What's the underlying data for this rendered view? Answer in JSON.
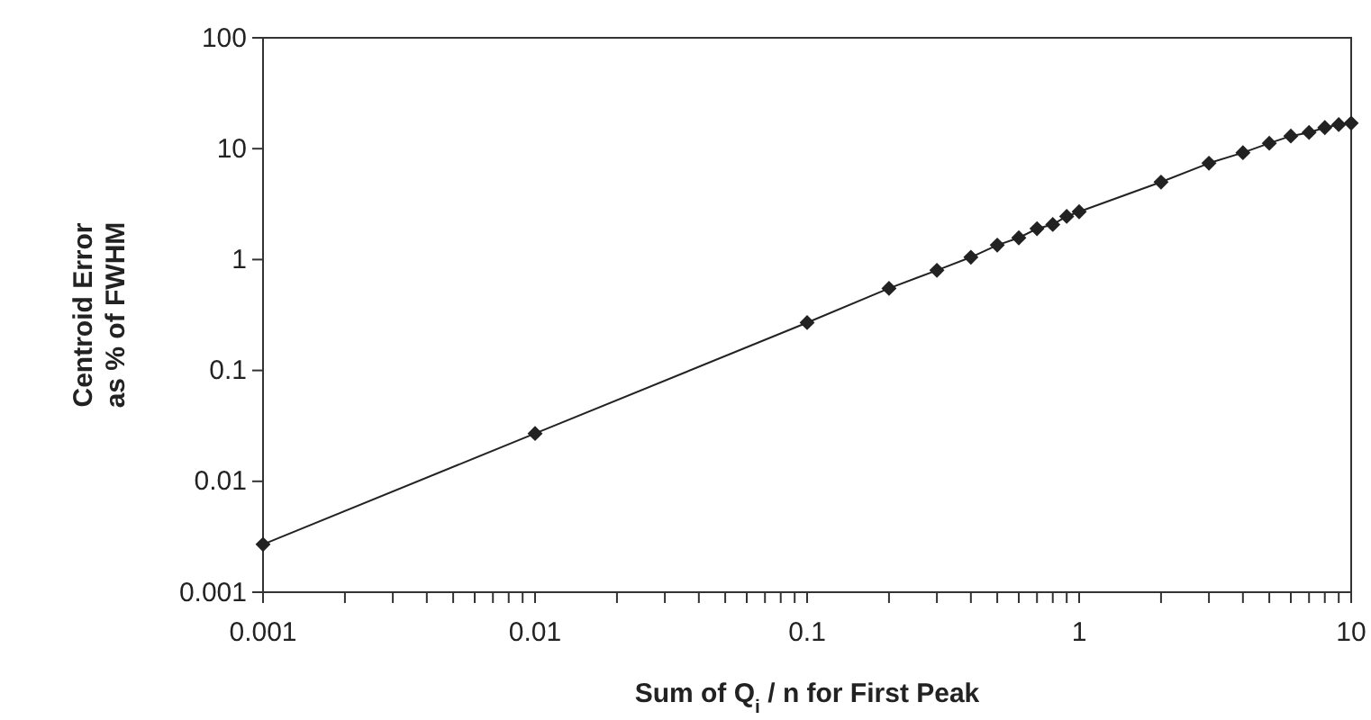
{
  "chart_data": {
    "type": "line",
    "xlabel": "Sum of Q$_{i}$ / n for First Peak",
    "ylabel": "Centroid Error\nas % of FWHM",
    "log": "xy",
    "grid": false,
    "marker": "diamond",
    "line_style": "solid",
    "xlim": [
      0.001,
      10
    ],
    "ylim": [
      0.001,
      100
    ],
    "xticks": [
      0.001,
      {
        "value": 0.002,
        "label": null
      },
      {
        "value": 0.003,
        "label": null
      },
      {
        "value": 0.004,
        "label": null
      },
      {
        "value": 0.005,
        "label": null
      },
      {
        "value": 0.006,
        "label": null
      },
      {
        "value": 0.007,
        "label": null
      },
      {
        "value": 0.008,
        "label": null
      },
      {
        "value": 0.009,
        "label": null
      },
      0.01,
      {
        "value": 0.02,
        "label": null
      },
      {
        "value": 0.03,
        "label": null
      },
      {
        "value": 0.04,
        "label": null
      },
      {
        "value": 0.05,
        "label": null
      },
      {
        "value": 0.06,
        "label": null
      },
      {
        "value": 0.07,
        "label": null
      },
      {
        "value": 0.08,
        "label": null
      },
      {
        "value": 0.09,
        "label": null
      },
      0.1,
      {
        "value": 0.2,
        "label": null
      },
      {
        "value": 0.3,
        "label": null
      },
      {
        "value": 0.4,
        "label": null
      },
      {
        "value": 0.5,
        "label": null
      },
      {
        "value": 0.6,
        "label": null
      },
      {
        "value": 0.7,
        "label": null
      },
      {
        "value": 0.8,
        "label": null
      },
      {
        "value": 0.9,
        "label": null
      },
      1,
      {
        "value": 2,
        "label": null
      },
      {
        "value": 3,
        "label": null
      },
      {
        "value": 4,
        "label": null
      },
      {
        "value": 5,
        "label": null
      },
      {
        "value": 6,
        "label": null
      },
      {
        "value": 7,
        "label": null
      },
      {
        "value": 8,
        "label": null
      },
      {
        "value": 9,
        "label": null
      },
      10
    ],
    "yticks": [
      0.001,
      0.01,
      0.1,
      1,
      10,
      100
    ],
    "x": [
      0.001,
      0.01,
      0.1,
      0.2,
      0.3,
      0.4,
      0.5,
      0.6,
      0.7,
      0.8,
      0.9,
      1,
      2,
      3,
      4,
      5,
      6,
      7,
      8,
      9,
      10
    ],
    "series": [
      {
        "color": "#222222",
        "values": [
          0.0027,
          0.027,
          0.27,
          0.55,
          0.8,
          1.05,
          1.35,
          1.57,
          1.9,
          2.07,
          2.45,
          2.7,
          5.0,
          7.4,
          9.2,
          11.2,
          13,
          14,
          15.5,
          16.5,
          17
        ]
      }
    ]
  }
}
